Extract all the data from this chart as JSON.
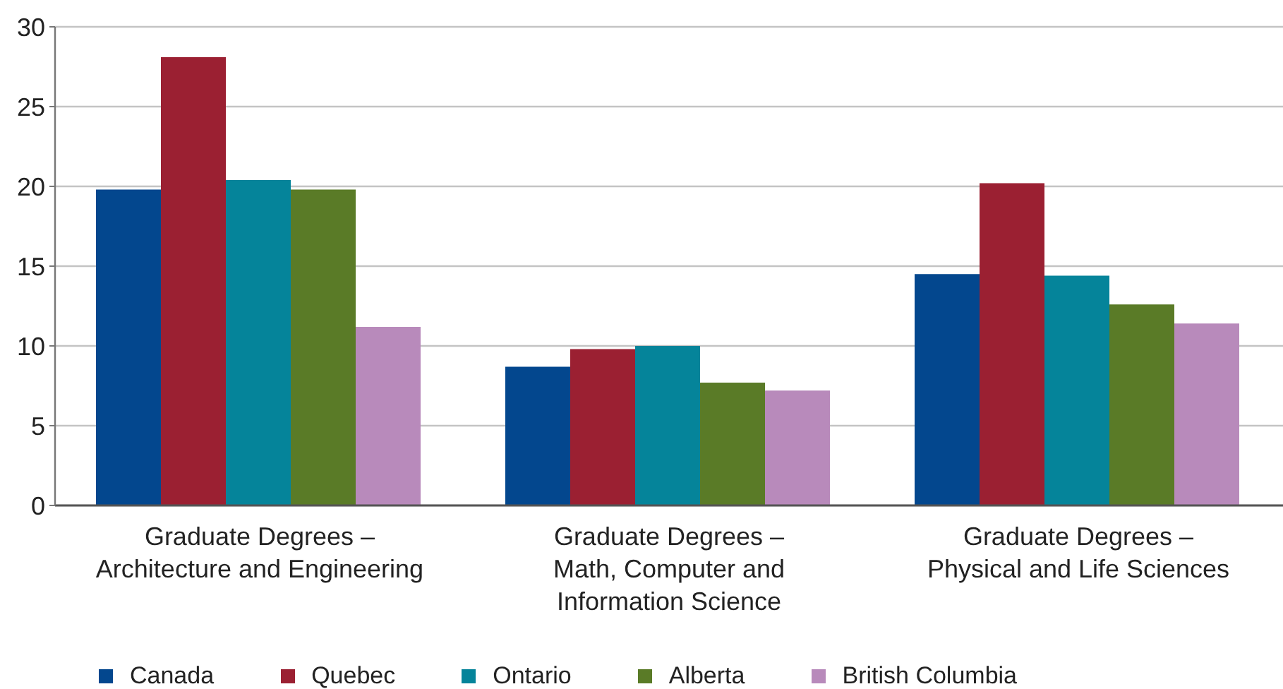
{
  "chart_data": {
    "type": "bar",
    "categories": [
      "Graduate Degrees –\nArchitecture and Engineering",
      "Graduate Degrees –\nMath, Computer and\nInformation Science",
      "Graduate Degrees –\nPhysical and Life Sciences"
    ],
    "series": [
      {
        "name": "Canada",
        "color": "#03478e",
        "values": [
          19.8,
          8.7,
          14.5
        ]
      },
      {
        "name": "Quebec",
        "color": "#9b2032",
        "values": [
          28.1,
          9.8,
          20.2
        ]
      },
      {
        "name": "Ontario",
        "color": "#05849a",
        "values": [
          20.4,
          10.0,
          14.4
        ]
      },
      {
        "name": "Alberta",
        "color": "#5a7b27",
        "values": [
          19.8,
          7.7,
          12.6
        ]
      },
      {
        "name": "British Columbia",
        "color": "#b88abb",
        "values": [
          11.2,
          7.2,
          11.4
        ]
      }
    ],
    "ylim": [
      0,
      30
    ],
    "yticks": [
      0,
      5,
      10,
      15,
      20,
      25,
      30
    ],
    "grid": "y",
    "legend": "bottom"
  }
}
